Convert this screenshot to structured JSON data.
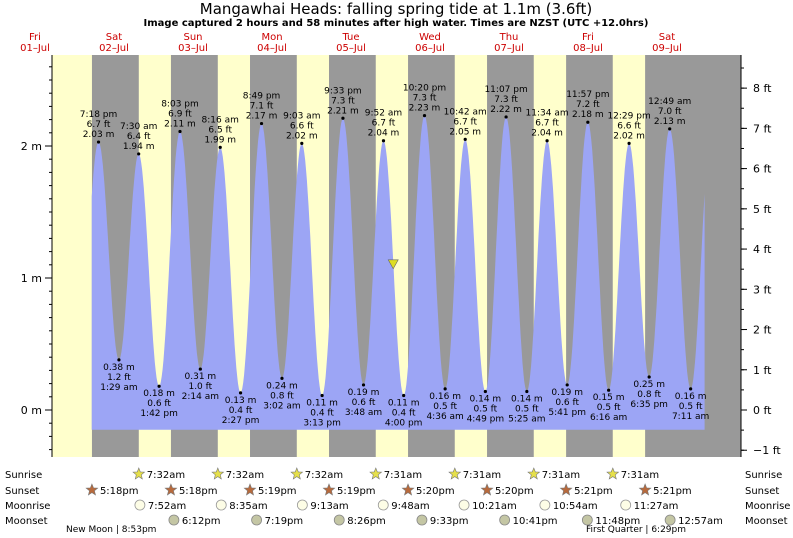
{
  "title": "Mangawhai Heads: falling  spring tide at 1.1m (3.6ft)",
  "subtitle": "Image captured 2 hours and 58 minutes after high water. Times are NZST (UTC +12.0hrs)",
  "colors": {
    "background": "#ffffcc",
    "night": "#999999",
    "tide": "#9ca5f5",
    "day_label": "#cc0000",
    "marker": "#dddd22"
  },
  "days": [
    {
      "dow": "Fri",
      "date": "01–Jul"
    },
    {
      "dow": "Sat",
      "date": "02–Jul"
    },
    {
      "dow": "Sun",
      "date": "03–Jul"
    },
    {
      "dow": "Mon",
      "date": "04–Jul"
    },
    {
      "dow": "Tue",
      "date": "05–Jul"
    },
    {
      "dow": "Wed",
      "date": "06–Jul"
    },
    {
      "dow": "Thu",
      "date": "07–Jul"
    },
    {
      "dow": "Fri",
      "date": "08–Jul"
    },
    {
      "dow": "Sat",
      "date": "09–Jul"
    }
  ],
  "chart_data": {
    "type": "area",
    "units_left": "m",
    "units_right": "ft",
    "ylim": [
      -0.35,
      2.75
    ],
    "left_ticks": [
      "2 m",
      "1 m",
      "0 m"
    ],
    "right_ticks": [
      "8 ft",
      "7 ft",
      "6 ft",
      "5 ft",
      "4 ft",
      "3 ft",
      "2 ft",
      "1 ft",
      "0 ft",
      "−1 ft"
    ],
    "x_start": "01-Jul 00:00",
    "x_end": "09-Jul 24:00",
    "current": {
      "time": "05-Jul 12:50",
      "height_m": 1.1
    },
    "extremes": [
      {
        "kind": "high",
        "time": "7:18 pm",
        "ft": "6.7 ft",
        "m": "2.03 m",
        "t_hours": 19.3,
        "h": 2.03
      },
      {
        "kind": "low",
        "time": "1:29 am",
        "ft": "1.2 ft",
        "m": "0.38 m",
        "t_hours": 25.5,
        "h": 0.38
      },
      {
        "kind": "high",
        "time": "7:30 am",
        "ft": "6.4 ft",
        "m": "1.94 m",
        "t_hours": 31.5,
        "h": 1.94
      },
      {
        "kind": "low",
        "time": "1:42 pm",
        "ft": "0.6 ft",
        "m": "0.18 m",
        "t_hours": 37.7,
        "h": 0.18
      },
      {
        "kind": "high",
        "time": "8:03 pm",
        "ft": "6.9 ft",
        "m": "2.11 m",
        "t_hours": 44.05,
        "h": 2.11
      },
      {
        "kind": "low",
        "time": "2:14 am",
        "ft": "1.0 ft",
        "m": "0.31 m",
        "t_hours": 50.23,
        "h": 0.31
      },
      {
        "kind": "high",
        "time": "8:16 am",
        "ft": "6.5 ft",
        "m": "1.99 m",
        "t_hours": 56.27,
        "h": 1.99
      },
      {
        "kind": "low",
        "time": "2:27 pm",
        "ft": "0.4 ft",
        "m": "0.13 m",
        "t_hours": 62.45,
        "h": 0.13
      },
      {
        "kind": "high",
        "time": "8:49 pm",
        "ft": "7.1 ft",
        "m": "2.17 m",
        "t_hours": 68.82,
        "h": 2.17
      },
      {
        "kind": "low",
        "time": "3:02 am",
        "ft": "0.8 ft",
        "m": "0.24 m",
        "t_hours": 75.03,
        "h": 0.24
      },
      {
        "kind": "high",
        "time": "9:03 am",
        "ft": "6.6 ft",
        "m": "2.02 m",
        "t_hours": 81.05,
        "h": 2.02
      },
      {
        "kind": "low",
        "time": "3:13 pm",
        "ft": "0.4 ft",
        "m": "0.11 m",
        "t_hours": 87.22,
        "h": 0.11
      },
      {
        "kind": "high",
        "time": "9:33 pm",
        "ft": "7.3 ft",
        "m": "2.21 m",
        "t_hours": 93.55,
        "h": 2.21
      },
      {
        "kind": "low",
        "time": "3:48 am",
        "ft": "0.6 ft",
        "m": "0.19 m",
        "t_hours": 99.8,
        "h": 0.19
      },
      {
        "kind": "high",
        "time": "9:52 am",
        "ft": "6.7 ft",
        "m": "2.04 m",
        "t_hours": 105.87,
        "h": 2.04
      },
      {
        "kind": "low",
        "time": "4:00 pm",
        "ft": "0.4 ft",
        "m": "0.11 m",
        "t_hours": 112.0,
        "h": 0.11
      },
      {
        "kind": "high",
        "time": "10:20 pm",
        "ft": "7.3 ft",
        "m": "2.23 m",
        "t_hours": 118.33,
        "h": 2.23
      },
      {
        "kind": "low",
        "time": "4:36 am",
        "ft": "0.5 ft",
        "m": "0.16 m",
        "t_hours": 124.6,
        "h": 0.16
      },
      {
        "kind": "high",
        "time": "10:42 am",
        "ft": "6.7 ft",
        "m": "2.05 m",
        "t_hours": 130.7,
        "h": 2.05
      },
      {
        "kind": "low",
        "time": "4:49 pm",
        "ft": "0.5 ft",
        "m": "0.14 m",
        "t_hours": 136.82,
        "h": 0.14
      },
      {
        "kind": "high",
        "time": "11:07 pm",
        "ft": "7.3 ft",
        "m": "2.22 m",
        "t_hours": 143.12,
        "h": 2.22
      },
      {
        "kind": "low",
        "time": "5:25 am",
        "ft": "0.5 ft",
        "m": "0.14 m",
        "t_hours": 149.42,
        "h": 0.14
      },
      {
        "kind": "high",
        "time": "11:34 am",
        "ft": "6.7 ft",
        "m": "2.04 m",
        "t_hours": 155.57,
        "h": 2.04
      },
      {
        "kind": "low",
        "time": "5:41 pm",
        "ft": "0.6 ft",
        "m": "0.19 m",
        "t_hours": 161.68,
        "h": 0.19
      },
      {
        "kind": "high",
        "time": "11:57 pm",
        "ft": "7.2 ft",
        "m": "2.18 m",
        "t_hours": 167.95,
        "h": 2.18
      },
      {
        "kind": "low",
        "time": "6:16 am",
        "ft": "0.5 ft",
        "m": "0.15 m",
        "t_hours": 174.27,
        "h": 0.15
      },
      {
        "kind": "high",
        "time": "12:29 pm",
        "ft": "6.6 ft",
        "m": "2.02 m",
        "t_hours": 180.48,
        "h": 2.02
      },
      {
        "kind": "low",
        "time": "6:35 pm",
        "ft": "0.8 ft",
        "m": "0.25 m",
        "t_hours": 186.58,
        "h": 0.25
      },
      {
        "kind": "high",
        "time": "12:49 am",
        "ft": "7.0 ft",
        "m": "2.13 m",
        "t_hours": 192.82,
        "h": 2.13
      },
      {
        "kind": "low",
        "time": "7:11 am",
        "ft": "0.5 ft",
        "m": "0.16 m",
        "t_hours": 199.18,
        "h": 0.16
      }
    ]
  },
  "sun_moon": {
    "labels": [
      "Sunrise",
      "Sunset",
      "Moonrise",
      "Moonset"
    ],
    "sunrise": [
      {
        "day": 1,
        "time": "7:32am",
        "t": 31.53
      },
      {
        "day": 2,
        "time": "7:32am",
        "t": 55.53
      },
      {
        "day": 3,
        "time": "7:32am",
        "t": 79.53
      },
      {
        "day": 4,
        "time": "7:31am",
        "t": 103.52
      },
      {
        "day": 5,
        "time": "7:31am",
        "t": 127.52
      },
      {
        "day": 6,
        "time": "7:31am",
        "t": 151.52
      },
      {
        "day": 7,
        "time": "7:31am",
        "t": 175.52
      }
    ],
    "sunset": [
      {
        "day": 0,
        "time": "5:18pm",
        "t": 17.3
      },
      {
        "day": 1,
        "time": "5:18pm",
        "t": 41.3
      },
      {
        "day": 2,
        "time": "5:19pm",
        "t": 65.32
      },
      {
        "day": 3,
        "time": "5:19pm",
        "t": 89.32
      },
      {
        "day": 4,
        "time": "5:20pm",
        "t": 113.33
      },
      {
        "day": 5,
        "time": "5:20pm",
        "t": 137.33
      },
      {
        "day": 6,
        "time": "5:21pm",
        "t": 161.35
      },
      {
        "day": 7,
        "time": "5:21pm",
        "t": 185.35
      }
    ],
    "moonrise": [
      {
        "time": "7:52am",
        "t": 31.87
      },
      {
        "time": "8:35am",
        "t": 56.58
      },
      {
        "time": "9:13am",
        "t": 81.22
      },
      {
        "time": "9:48am",
        "t": 105.8
      },
      {
        "time": "10:21am",
        "t": 130.35
      },
      {
        "time": "10:54am",
        "t": 154.9
      },
      {
        "time": "11:27am",
        "t": 179.45
      }
    ],
    "moonset": [
      {
        "time": "6:12pm",
        "t": 42.2
      },
      {
        "time": "7:19pm",
        "t": 67.32
      },
      {
        "time": "8:26pm",
        "t": 92.43
      },
      {
        "time": "9:33pm",
        "t": 117.55
      },
      {
        "time": "10:41pm",
        "t": 142.68
      },
      {
        "time": "11:48pm",
        "t": 167.8
      },
      {
        "time": "12:57am",
        "t": 192.95
      }
    ],
    "phases": [
      {
        "label": "New Moon | 8:53pm"
      },
      {
        "label": "First Quarter | 6:29pm"
      }
    ]
  }
}
